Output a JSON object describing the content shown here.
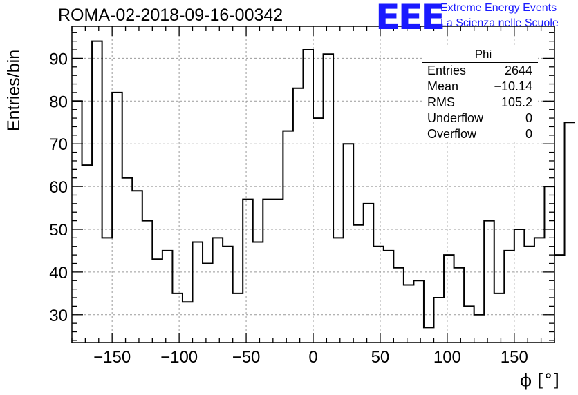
{
  "header": {
    "run_title": "ROMA-02-2018-09-16-00342",
    "logo_text": "EEE",
    "logo_line1": "Extreme Energy Events",
    "logo_line2": "La Scienza nelle Scuole"
  },
  "stats": {
    "name": "Phi",
    "rows": [
      {
        "label": "Entries",
        "value": "2644"
      },
      {
        "label": "Mean",
        "value": "−10.14"
      },
      {
        "label": "RMS",
        "value": "105.2"
      },
      {
        "label": "Underflow",
        "value": "0"
      },
      {
        "label": "Overflow",
        "value": "0"
      }
    ]
  },
  "colors": {
    "logo": "#1a1aff",
    "line": "#000000",
    "grid": "#999999"
  },
  "chart_data": {
    "type": "bar",
    "histogram_style": "step",
    "title": "ROMA-02-2018-09-16-00342",
    "xlabel": "ϕ [°]",
    "ylabel": "Entries/bin",
    "xlim": [
      -180,
      180
    ],
    "ylim": [
      23.5,
      97.5
    ],
    "xticks": [
      -150,
      -100,
      -50,
      0,
      50,
      100,
      150
    ],
    "yticks": [
      30,
      40,
      50,
      60,
      70,
      80,
      90
    ],
    "xtick_labels": [
      "−150",
      "−100",
      "−50",
      "0",
      "50",
      "100",
      "150"
    ],
    "ytick_labels": [
      "30",
      "40",
      "50",
      "60",
      "70",
      "80",
      "90"
    ],
    "grid": true,
    "bin_width": 7.5,
    "bin_start": -180,
    "values": [
      80,
      65,
      94,
      48,
      82,
      62,
      59,
      52,
      43,
      45,
      35,
      33,
      47,
      42,
      48,
      46,
      35,
      57,
      47,
      57,
      57,
      73,
      83,
      92,
      76,
      91,
      48,
      70,
      51,
      56,
      46,
      45,
      41,
      37,
      38,
      27,
      34,
      44,
      41,
      32,
      30,
      52,
      35,
      45,
      50,
      46,
      48,
      60,
      44,
      75
    ]
  }
}
